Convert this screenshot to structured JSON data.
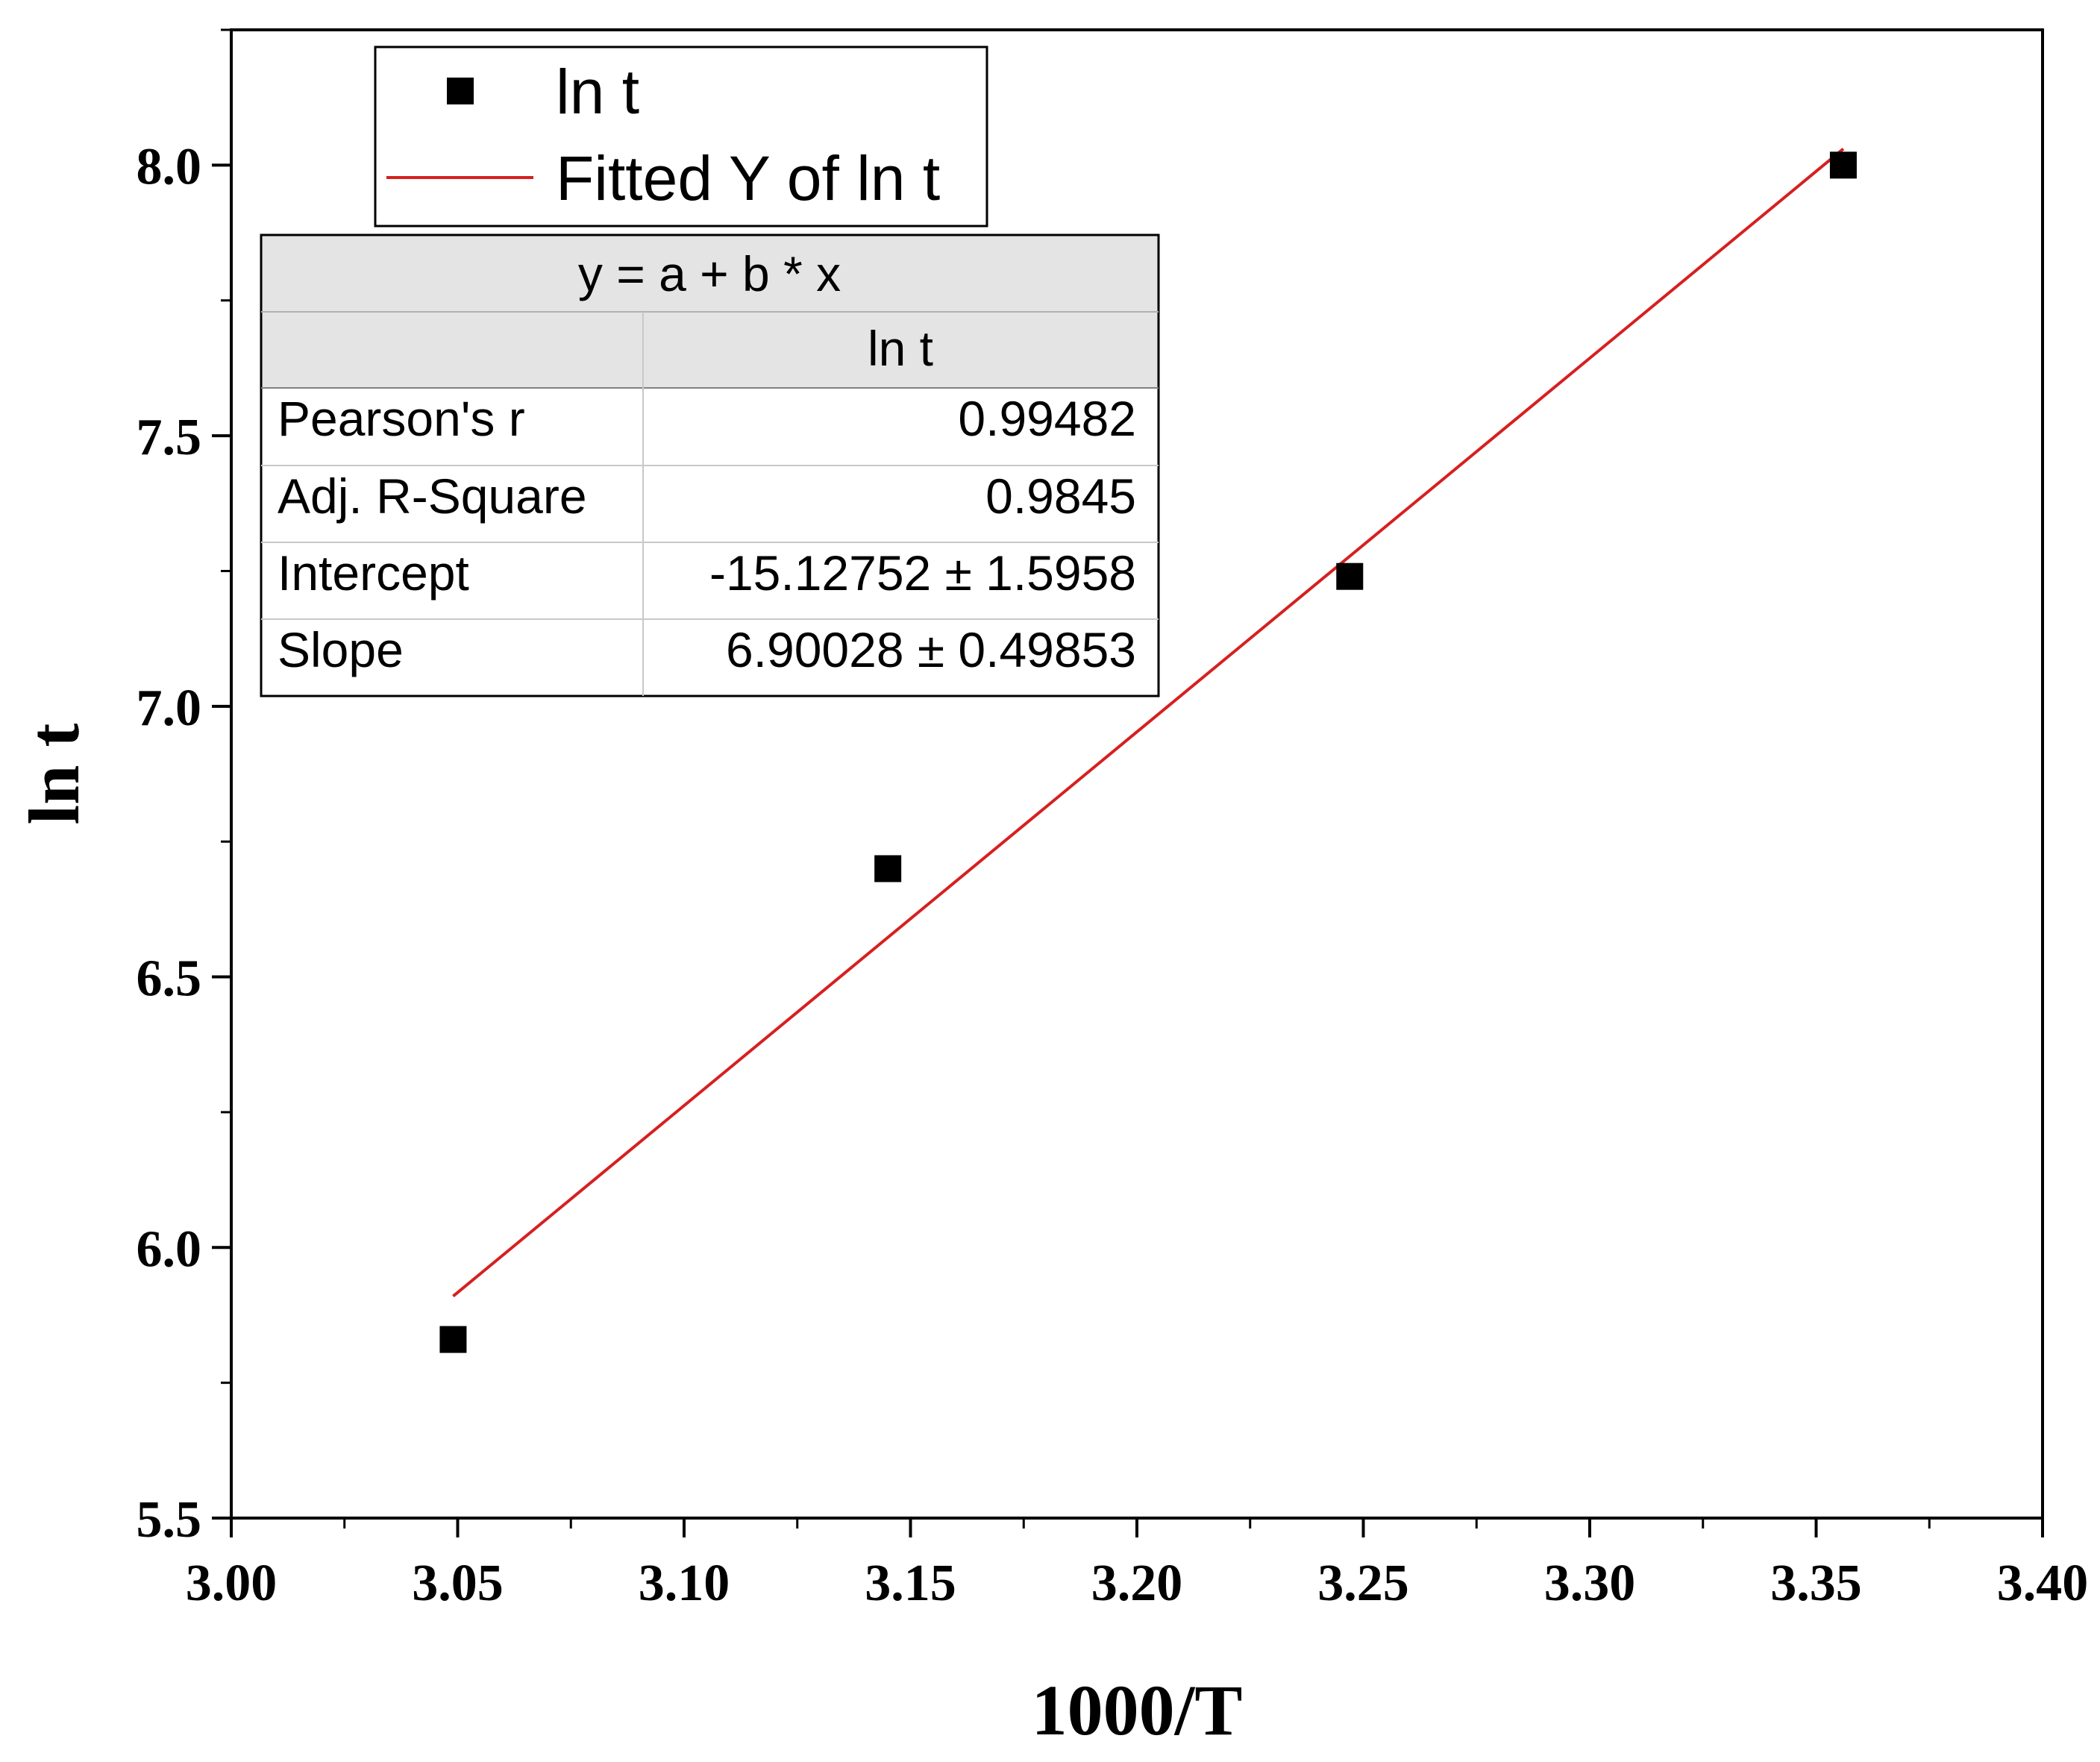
{
  "chart_data": {
    "type": "scatter",
    "xlabel": "1000/T",
    "ylabel": "ln t",
    "xlim": [
      3.0,
      3.4
    ],
    "ylim": [
      5.5,
      8.25
    ],
    "x_ticks": [
      "3.00",
      "3.05",
      "3.10",
      "3.15",
      "3.20",
      "3.25",
      "3.30",
      "3.35",
      "3.40"
    ],
    "y_ticks": [
      "5.5",
      "6.0",
      "6.5",
      "7.0",
      "7.5",
      "8.0"
    ],
    "grid": false,
    "legend_position": "top-left",
    "series": [
      {
        "name": "ln t",
        "kind": "scatter",
        "marker": "square",
        "color": "#000000",
        "x": [
          3.049,
          3.145,
          3.247,
          3.356
        ],
        "y": [
          5.83,
          6.7,
          7.24,
          8.0
        ]
      },
      {
        "name": "Fitted Y of ln t",
        "kind": "line",
        "color": "#d62020",
        "x": [
          3.049,
          3.356
        ],
        "y": [
          5.91,
          8.03
        ]
      }
    ],
    "fit_table": {
      "equation": "y = a + b * x",
      "column_header": "ln t",
      "rows": [
        {
          "label": "Pearson's r",
          "value": "0.99482"
        },
        {
          "label": "Adj. R-Square",
          "value": "0.9845"
        },
        {
          "label": "Intercept",
          "value": "-15.12752 ± 1.5958"
        },
        {
          "label": "Slope",
          "value": "6.90028 ± 0.49853"
        }
      ]
    }
  }
}
